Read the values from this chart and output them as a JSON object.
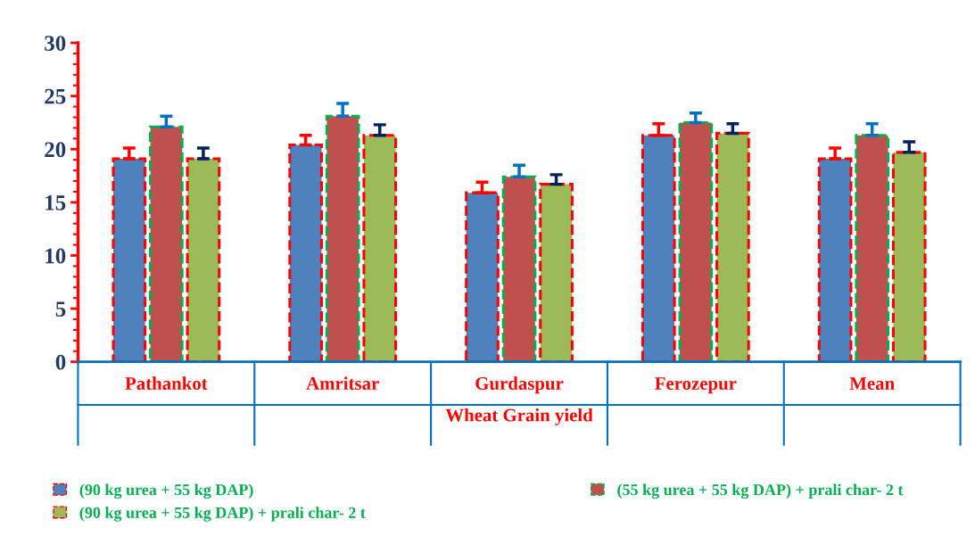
{
  "chart_data": {
    "type": "bar",
    "xlabel": "Wheat Grain yield",
    "categories": [
      "Pathankot",
      "Amritsar",
      "Gurdaspur",
      "Ferozepur",
      "Mean"
    ],
    "series": [
      {
        "name": "(90 kg urea + 55 kg DAP)",
        "color": "#4f81bd",
        "values": [
          19.1,
          20.4,
          15.9,
          21.3,
          19.1
        ],
        "errors": [
          [
            19.1,
            20.1
          ],
          [
            20.4,
            21.3
          ],
          [
            15.9,
            16.9
          ],
          [
            21.3,
            22.4
          ],
          [
            19.1,
            20.1
          ]
        ]
      },
      {
        "name": "(55 kg urea + 55 kg DAP) + prali char- 2 t",
        "color": "#c0504d",
        "values": [
          22.1,
          23.1,
          17.4,
          22.5,
          21.3
        ],
        "errors": [
          [
            22.1,
            23.1
          ],
          [
            23.1,
            24.3
          ],
          [
            17.4,
            18.5
          ],
          [
            22.5,
            23.4
          ],
          [
            21.3,
            22.4
          ]
        ]
      },
      {
        "name": "(90 kg urea + 55 kg DAP) + prali char- 2 t",
        "color": "#9bbb59",
        "values": [
          19.1,
          21.3,
          16.7,
          21.5,
          19.7
        ],
        "errors": [
          [
            19.1,
            20.1
          ],
          [
            21.3,
            22.3
          ],
          [
            16.7,
            17.6
          ],
          [
            21.5,
            22.4
          ],
          [
            19.7,
            20.7
          ]
        ]
      }
    ],
    "ylim": [
      0,
      30
    ],
    "yticks": [
      0,
      5,
      10,
      15,
      20,
      25,
      30
    ],
    "grid": false,
    "legend": "bottom"
  }
}
